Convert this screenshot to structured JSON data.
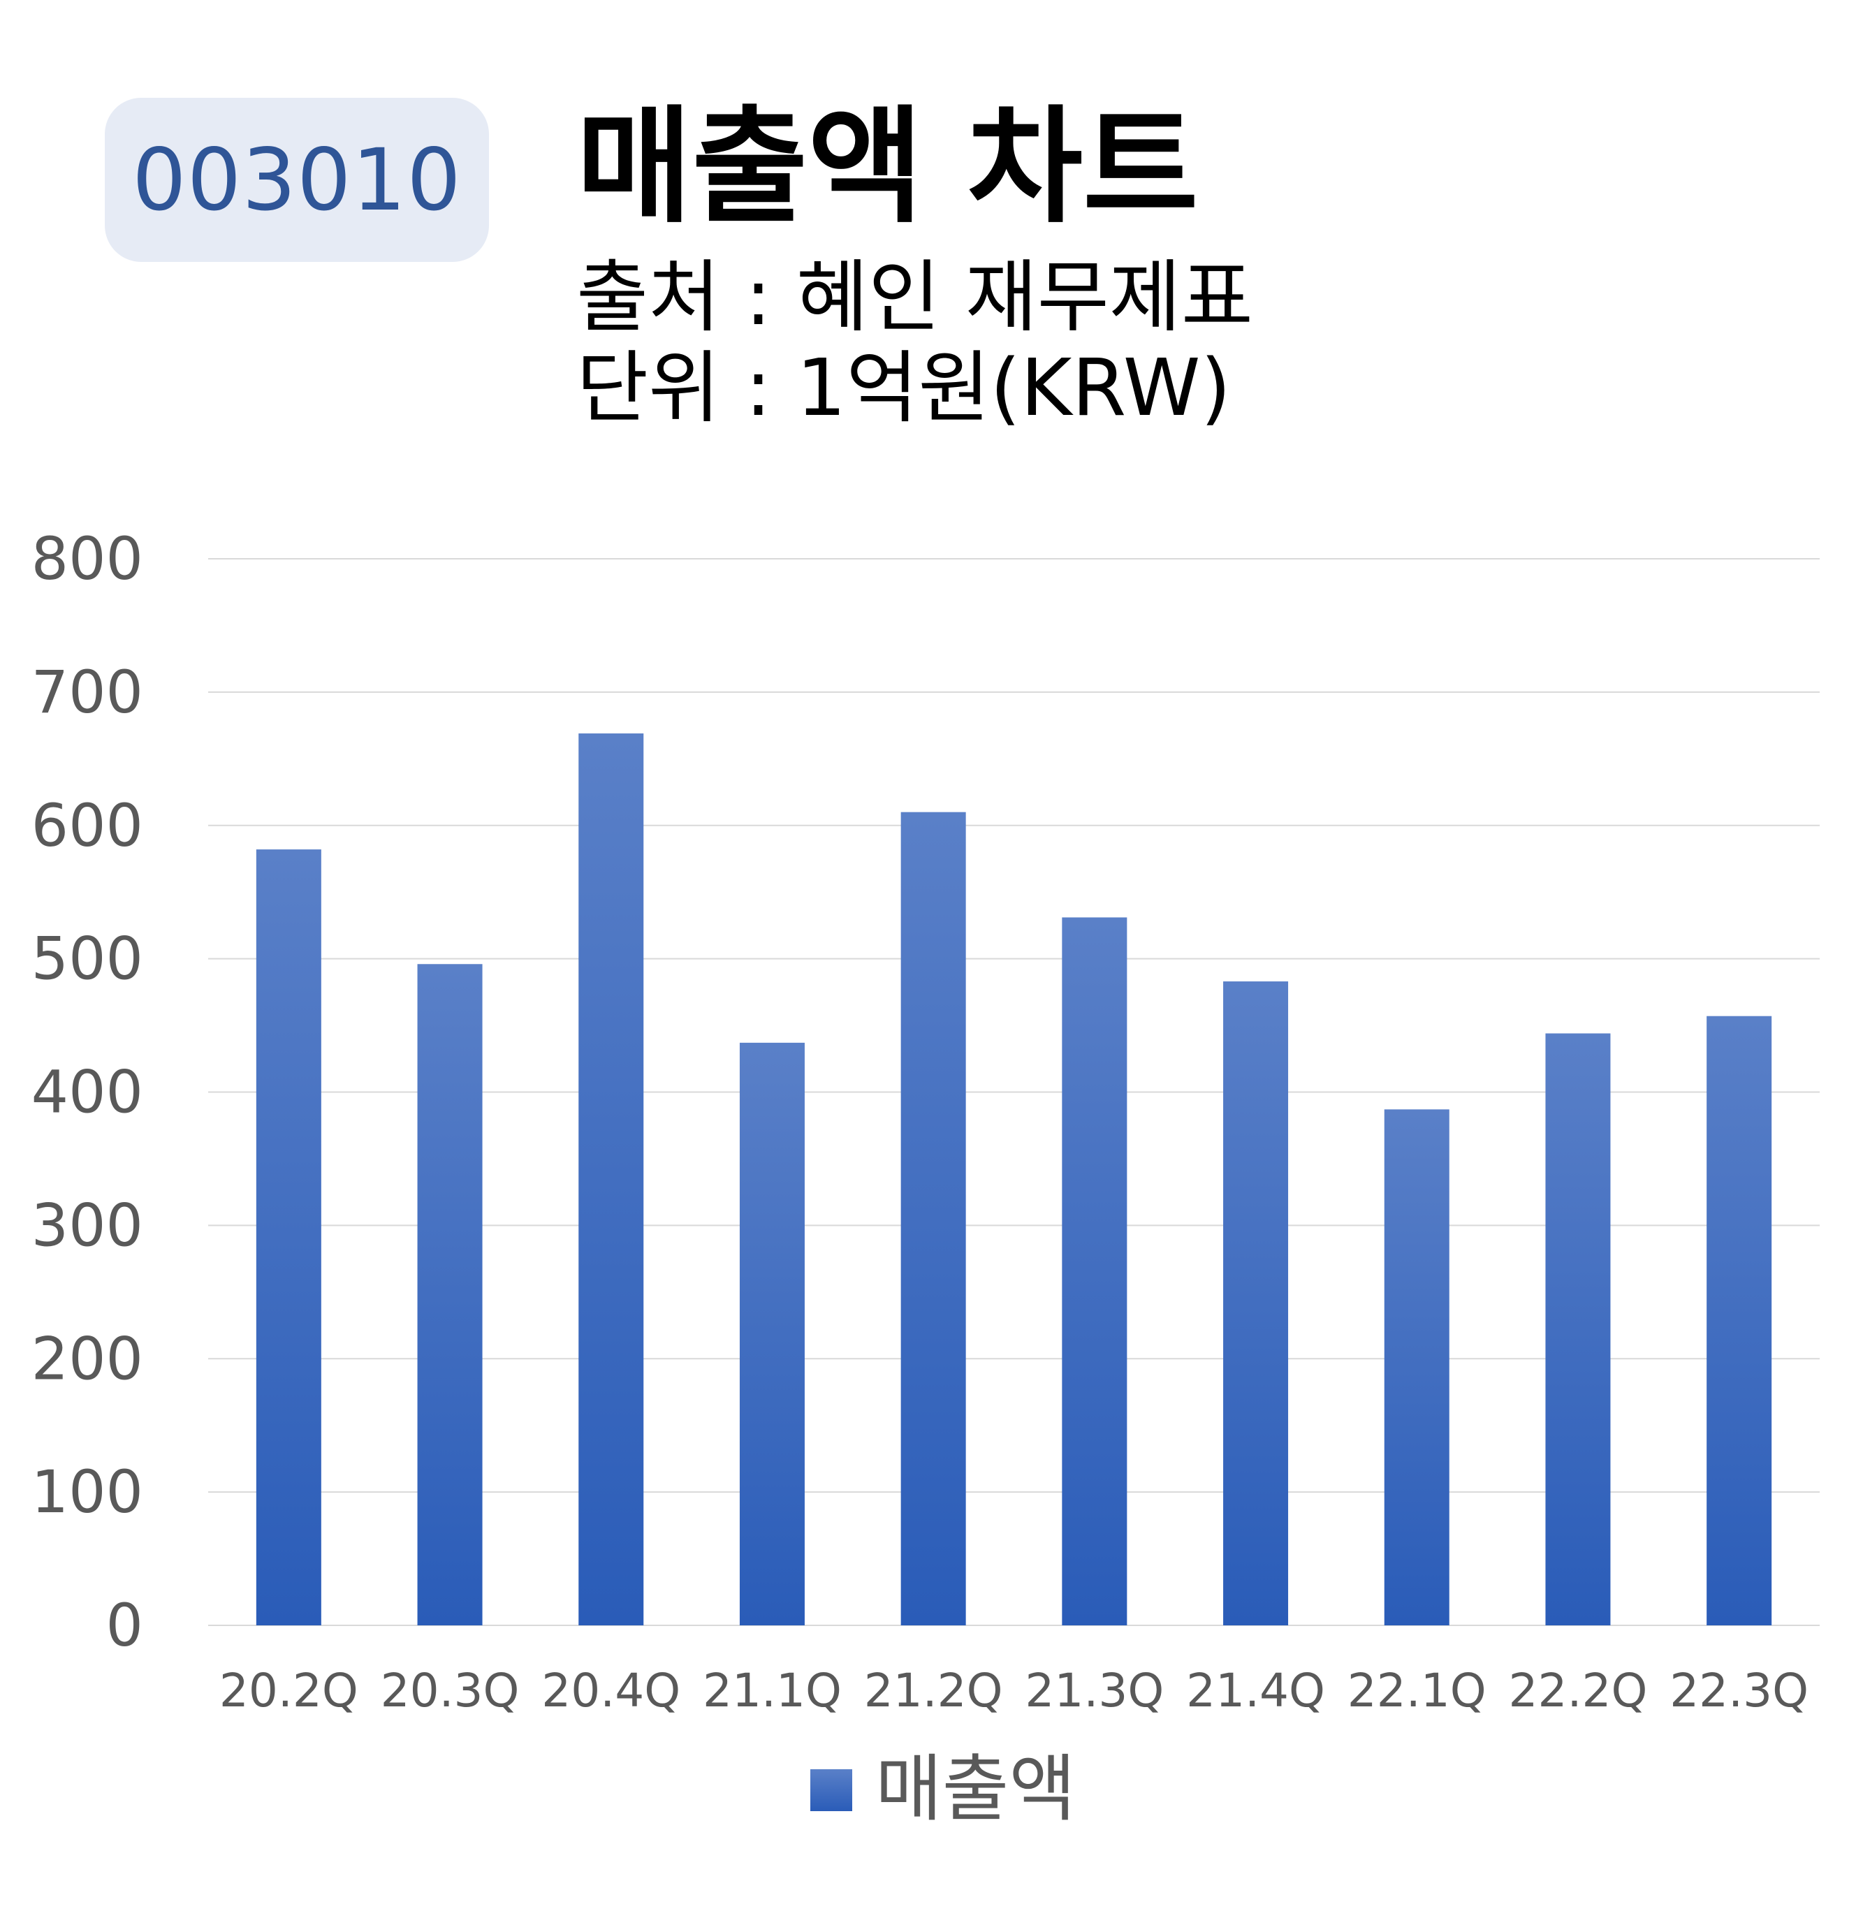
{
  "header": {
    "ticker": "003010",
    "title": "매출액 차트",
    "source_line": "출처 : 혜인 재무제표",
    "unit_line": "단위 : 1억원(KRW)"
  },
  "chart_data": {
    "type": "bar",
    "categories": [
      "20.2Q",
      "20.3Q",
      "20.4Q",
      "21.1Q",
      "21.2Q",
      "21.3Q",
      "21.4Q",
      "22.1Q",
      "22.2Q",
      "22.3Q"
    ],
    "series": [
      {
        "name": "매출액",
        "values": [
          582,
          496,
          669,
          437,
          610,
          531,
          483,
          387,
          444,
          457
        ]
      }
    ],
    "y_ticks": [
      "0",
      "100",
      "200",
      "300",
      "400",
      "500",
      "600",
      "700",
      "800"
    ],
    "ylim": [
      0,
      800
    ],
    "grid": true,
    "legend": "bottom-center",
    "colors": {
      "bar_top": "#5a80c8",
      "bar_bottom": "#2a5cb8",
      "grid": "#d9d9d9",
      "text": "#595959"
    }
  }
}
